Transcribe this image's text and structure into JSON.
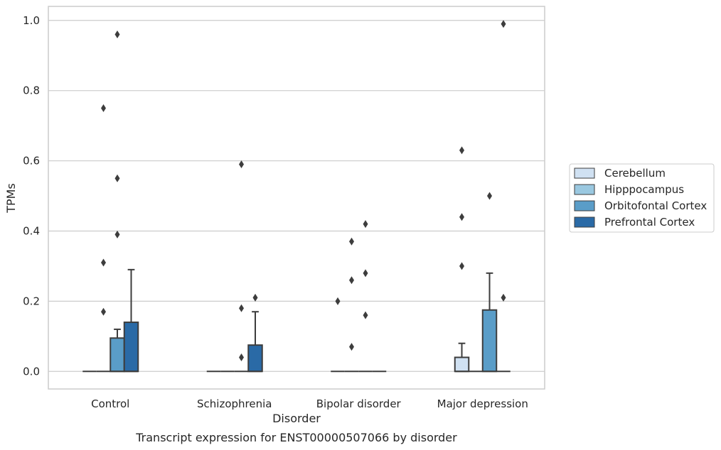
{
  "chart_data": {
    "type": "box",
    "xlabel": "Disorder",
    "ylabel": "TPMs",
    "caption": "Transcript expression for ENST00000507066 by disorder",
    "ylim": [
      -0.05,
      1.04
    ],
    "yticks": [
      0.0,
      0.2,
      0.4,
      0.6,
      0.8,
      1.0
    ],
    "ytick_labels": [
      "0.0",
      "0.2",
      "0.4",
      "0.6",
      "0.8",
      "1.0"
    ],
    "grid": "horizontal",
    "legend_position": "right",
    "categories": [
      "Control",
      "Schizophrenia",
      "Bipolar disorder",
      "Major depression"
    ],
    "series": [
      {
        "name": "Cerebellum",
        "color": "#d0e1f2",
        "boxes": [
          {
            "q1": 0,
            "median": 0,
            "q3": 0,
            "whisker_low": 0,
            "whisker_high": 0,
            "outliers": []
          },
          {
            "q1": 0,
            "median": 0,
            "q3": 0,
            "whisker_low": 0,
            "whisker_high": 0,
            "outliers": []
          },
          {
            "q1": 0,
            "median": 0,
            "q3": 0,
            "whisker_low": 0,
            "whisker_high": 0,
            "outliers": [
              0.2
            ]
          },
          {
            "q1": 0,
            "median": 0,
            "q3": 0.04,
            "whisker_low": 0,
            "whisker_high": 0.08,
            "outliers": [
              0.3,
              0.44,
              0.63
            ]
          }
        ]
      },
      {
        "name": "Hipppocampus",
        "color": "#9ac8e0",
        "boxes": [
          {
            "q1": 0,
            "median": 0,
            "q3": 0,
            "whisker_low": 0,
            "whisker_high": 0,
            "outliers": [
              0.17,
              0.31,
              0.75
            ]
          },
          {
            "q1": 0,
            "median": 0,
            "q3": 0,
            "whisker_low": 0,
            "whisker_high": 0,
            "outliers": []
          },
          {
            "q1": 0,
            "median": 0,
            "q3": 0,
            "whisker_low": 0,
            "whisker_high": 0,
            "outliers": [
              0.07,
              0.26,
              0.37
            ]
          },
          {
            "q1": 0,
            "median": 0,
            "q3": 0,
            "whisker_low": 0,
            "whisker_high": 0,
            "outliers": []
          }
        ]
      },
      {
        "name": "Orbitofontal Cortex",
        "color": "#5a9dc8",
        "boxes": [
          {
            "q1": 0,
            "median": 0,
            "q3": 0.095,
            "whisker_low": 0,
            "whisker_high": 0.12,
            "outliers": [
              0.39,
              0.55,
              0.96
            ]
          },
          {
            "q1": 0,
            "median": 0,
            "q3": 0,
            "whisker_low": 0,
            "whisker_high": 0,
            "outliers": [
              0.04,
              0.18,
              0.59
            ]
          },
          {
            "q1": 0,
            "median": 0,
            "q3": 0,
            "whisker_low": 0,
            "whisker_high": 0,
            "outliers": [
              0.16,
              0.28,
              0.42
            ]
          },
          {
            "q1": 0,
            "median": 0,
            "q3": 0.175,
            "whisker_low": 0,
            "whisker_high": 0.28,
            "outliers": [
              0.5
            ]
          }
        ]
      },
      {
        "name": "Prefrontal Cortex",
        "color": "#2a6aa6",
        "boxes": [
          {
            "q1": 0,
            "median": 0,
            "q3": 0.14,
            "whisker_low": 0,
            "whisker_high": 0.29,
            "outliers": []
          },
          {
            "q1": 0,
            "median": 0,
            "q3": 0.075,
            "whisker_low": 0,
            "whisker_high": 0.17,
            "outliers": [
              0.21
            ]
          },
          {
            "q1": 0,
            "median": 0,
            "q3": 0,
            "whisker_low": 0,
            "whisker_high": 0,
            "outliers": []
          },
          {
            "q1": 0,
            "median": 0,
            "q3": 0,
            "whisker_low": 0,
            "whisker_high": 0,
            "outliers": [
              0.21,
              0.99
            ]
          }
        ]
      }
    ]
  }
}
